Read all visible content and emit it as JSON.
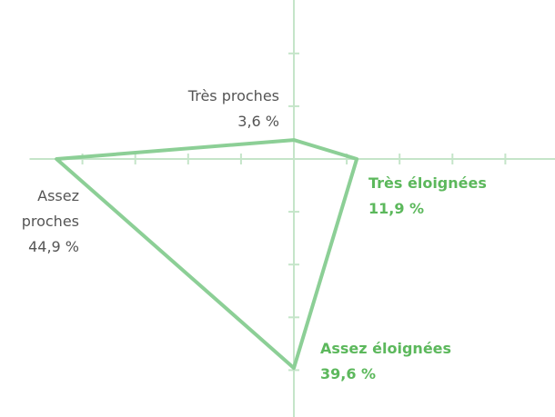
{
  "chart_data": {
    "type": "radar",
    "categories": [
      "Très proches",
      "Très éloignées",
      "Assez éloignées",
      "Assez proches"
    ],
    "values": [
      3.6,
      11.9,
      39.6,
      44.9
    ],
    "value_labels": [
      "3,6 %",
      "11,9 %",
      "39,6 %",
      "44,9 %"
    ],
    "color": "#8ccf96",
    "axis_color": "#c5e5c9",
    "label_colors": [
      "#555555",
      "#5cb85c",
      "#5cb85c",
      "#555555"
    ],
    "label_bold": [
      false,
      true,
      true,
      false
    ],
    "rlim": [
      0,
      50
    ],
    "rticks": [
      10,
      20,
      30,
      40
    ]
  }
}
